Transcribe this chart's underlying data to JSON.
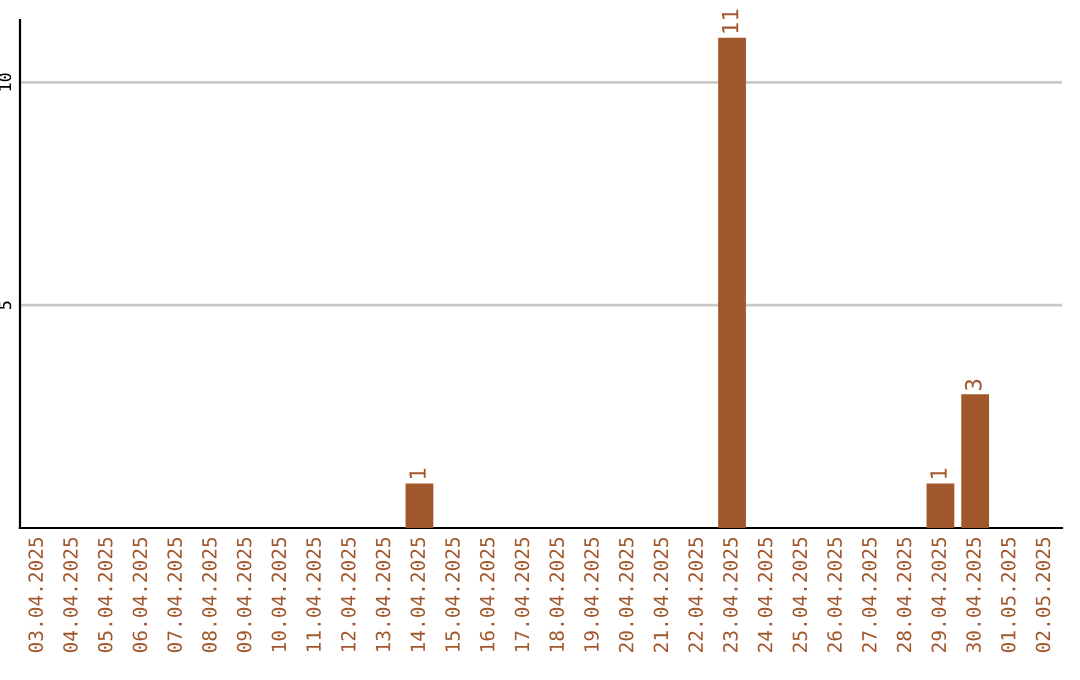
{
  "chart_data": {
    "type": "bar",
    "categories": [
      "03.04.2025",
      "04.04.2025",
      "05.04.2025",
      "06.04.2025",
      "07.04.2025",
      "08.04.2025",
      "09.04.2025",
      "10.04.2025",
      "11.04.2025",
      "12.04.2025",
      "13.04.2025",
      "14.04.2025",
      "15.04.2025",
      "16.04.2025",
      "17.04.2025",
      "18.04.2025",
      "19.04.2025",
      "20.04.2025",
      "21.04.2025",
      "22.04.2025",
      "23.04.2025",
      "24.04.2025",
      "25.04.2025",
      "26.04.2025",
      "27.04.2025",
      "28.04.2025",
      "29.04.2025",
      "30.04.2025",
      "01.05.2025",
      "02.05.2025"
    ],
    "values": [
      0,
      0,
      0,
      0,
      0,
      0,
      0,
      0,
      0,
      0,
      0,
      1,
      0,
      0,
      0,
      0,
      0,
      0,
      0,
      0,
      11,
      0,
      0,
      0,
      0,
      0,
      1,
      3,
      0,
      0
    ],
    "value_labels": [
      null,
      null,
      null,
      null,
      null,
      null,
      null,
      null,
      null,
      null,
      null,
      "1",
      null,
      null,
      null,
      null,
      null,
      null,
      null,
      null,
      "11",
      null,
      null,
      null,
      null,
      null,
      "1",
      "3",
      null,
      null
    ],
    "color": "#a0572b",
    "ylim": [
      0,
      11.4
    ],
    "yticks": [
      5,
      10
    ],
    "grid": "y",
    "legend": false
  }
}
